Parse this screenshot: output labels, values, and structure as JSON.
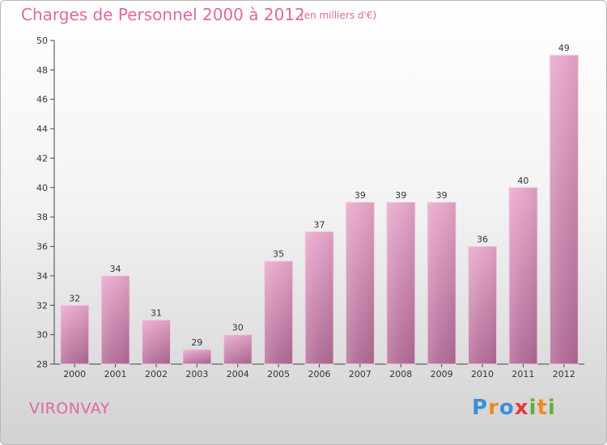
{
  "title": "Charges de Personnel 2000 à 2012",
  "subtitle": "(en milliers d'€)",
  "commune": "VIRONVAY",
  "logo": {
    "letters": [
      "P",
      "r",
      "o",
      "x",
      "i",
      "t",
      "i"
    ],
    "colors": [
      "#3b8fd6",
      "#f08a1c",
      "#3b8fd6",
      "#e23b3b",
      "#5db33d",
      "#f08a1c",
      "#5db33d"
    ]
  },
  "colors": {
    "accent": "#e0689f",
    "bar_top": "#e7a6cb",
    "bar_bottom": "#b06a95",
    "axis": "#444444"
  },
  "chart_data": {
    "type": "bar",
    "categories": [
      "2000",
      "2001",
      "2002",
      "2003",
      "2004",
      "2005",
      "2006",
      "2007",
      "2008",
      "2009",
      "2010",
      "2011",
      "2012"
    ],
    "values": [
      32,
      34,
      31,
      29,
      30,
      35,
      37,
      39,
      39,
      39,
      36,
      40,
      49
    ],
    "data_labels": [
      "32",
      "34",
      "31",
      "29",
      "30",
      "35",
      "37",
      "39",
      "39",
      "39",
      "36",
      "40",
      "49"
    ],
    "ylim": [
      28,
      50
    ],
    "yticks": [
      28,
      30,
      32,
      34,
      36,
      38,
      40,
      42,
      44,
      46,
      48,
      50
    ],
    "grid": false,
    "title": "Charges de Personnel 2000 à 2012",
    "xlabel": "",
    "ylabel": ""
  }
}
